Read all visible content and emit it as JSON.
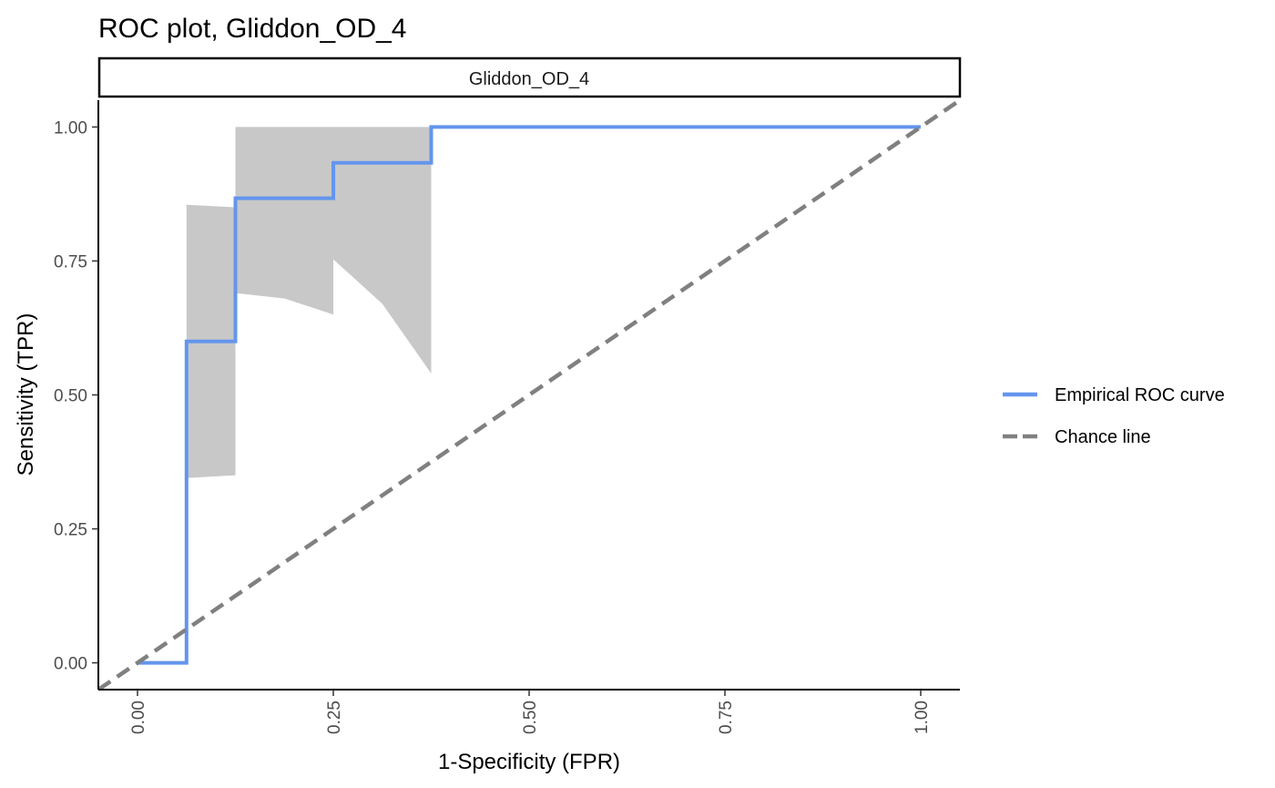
{
  "chart_data": {
    "type": "line",
    "title": "ROC plot, Gliddon_OD_4",
    "facet_label": "Gliddon_OD_4",
    "xlabel": "1-Specificity (FPR)",
    "ylabel": "Sensitivity (TPR)",
    "xlim": [
      -0.05,
      1.05
    ],
    "ylim": [
      -0.05,
      1.05
    ],
    "x_ticks": [
      "0.00",
      "0.25",
      "0.50",
      "0.75",
      "1.00"
    ],
    "y_ticks": [
      "0.00",
      "0.25",
      "0.50",
      "0.75",
      "1.00"
    ],
    "x_tick_values": [
      0,
      0.25,
      0.5,
      0.75,
      1
    ],
    "y_tick_values": [
      0,
      0.25,
      0.5,
      0.75,
      1
    ],
    "grid": false,
    "legend_position": "right",
    "series": [
      {
        "name": "Empirical ROC curve",
        "color": "#6495ED",
        "style": "solid",
        "x": [
          0.0,
          0.0625,
          0.0625,
          0.125,
          0.125,
          0.25,
          0.25,
          0.375,
          0.375,
          1.0
        ],
        "y": [
          0.0,
          0.0,
          0.6,
          0.6,
          0.867,
          0.867,
          0.933,
          0.933,
          1.0,
          1.0
        ]
      },
      {
        "name": "Chance line",
        "color": "#808080",
        "style": "dashed",
        "x": [
          -0.05,
          1.05
        ],
        "y": [
          -0.05,
          1.05
        ]
      }
    ],
    "confidence_band": {
      "color": "#C8C8C8",
      "x": [
        0.0625,
        0.125,
        0.125,
        0.1875,
        0.25,
        0.25,
        0.3125,
        0.375
      ],
      "lower": [
        0.345,
        0.35,
        0.69,
        0.68,
        0.65,
        0.753,
        0.67,
        0.54
      ],
      "upper": [
        0.855,
        0.85,
        1.0,
        1.0,
        1.0,
        1.0,
        1.0,
        1.0
      ]
    }
  }
}
